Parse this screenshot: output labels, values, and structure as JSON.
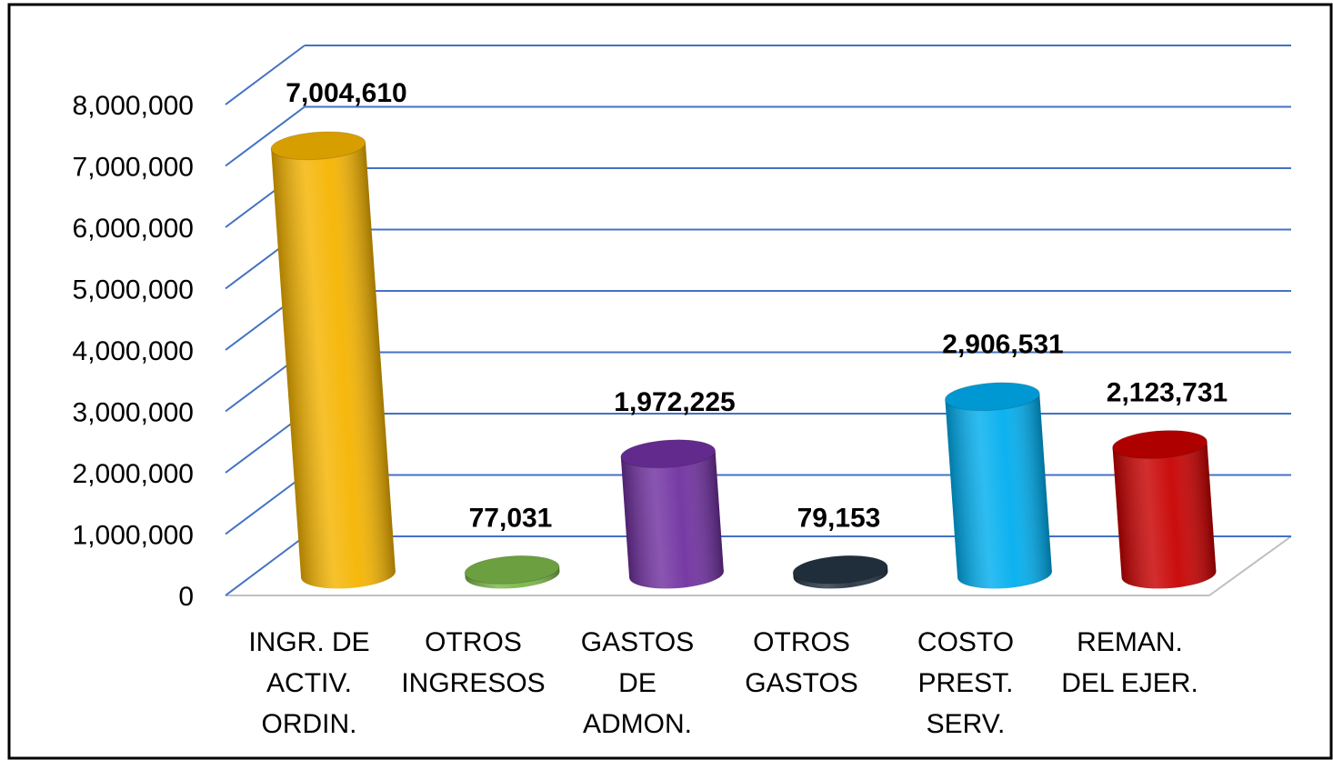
{
  "chart_data": {
    "type": "bar3d",
    "categories": [
      "INGR. DE\nACTIV.\nORDIN.",
      "OTROS\nINGRESOS",
      "GASTOS\nDE\nADMON.",
      "OTROS\nGASTOS",
      "COSTO\nPREST.\nSERV.",
      "REMAN.\nDEL EJER."
    ],
    "values": [
      7004610,
      77031,
      1972225,
      79153,
      2906531,
      2123731
    ],
    "value_labels": [
      "7,004,610",
      "77,031",
      "1,972,225",
      "79,153",
      "2,906,531",
      "2,123,731"
    ],
    "colors": [
      "#f5b400",
      "#7ab648",
      "#7030a0",
      "#253545",
      "#00aeef",
      "#c80000"
    ],
    "ylim": [
      0,
      8000000
    ],
    "yticks": [
      0,
      {
        "value": 1000000,
        "label": "1,000,000"
      },
      {
        "value": 2000000,
        "label": "2,000,000"
      },
      {
        "value": 3000000,
        "label": "3,000,000"
      },
      {
        "value": 4000000,
        "label": "4,000,000"
      },
      {
        "value": 5000000,
        "label": "5,000,000"
      },
      {
        "value": 6000000,
        "label": "6,000,000"
      },
      {
        "value": 7000000,
        "label": "7,000,000"
      },
      {
        "value": 8000000,
        "label": "8,000,000"
      }
    ],
    "grid": true
  }
}
